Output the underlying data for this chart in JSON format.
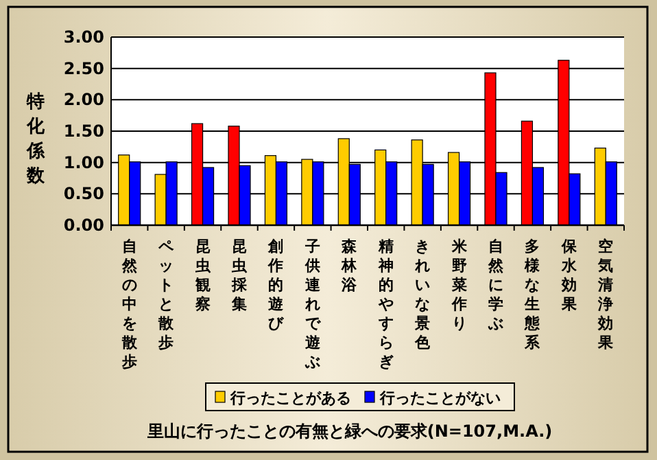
{
  "chart_data": {
    "type": "bar",
    "title": "里山に行ったことの有無と緑への要求(N=107,M.A.)",
    "ylabel": "特化係数",
    "categories": [
      "自然の中を散歩",
      "ペットと散歩",
      "昆虫観察",
      "昆虫採集",
      "創作的遊び",
      "子供連れで遊ぶ",
      "森林浴",
      "精神的やすらぎ",
      "きれいな景色",
      "米野菜作り",
      "自然に学ぶ",
      "多様な生態系",
      "保水効果",
      "空気清浄効果"
    ],
    "series": [
      {
        "name": "行ったことがある",
        "color": "#ffcc00",
        "colors": [
          "#ffcc00",
          "#ffcc00",
          "#ff0000",
          "#ff0000",
          "#ffcc00",
          "#ffcc00",
          "#ffcc00",
          "#ffcc00",
          "#ffcc00",
          "#ffcc00",
          "#ff0000",
          "#ff0000",
          "#ff0000",
          "#ffcc00"
        ],
        "values": [
          1.12,
          0.81,
          1.62,
          1.58,
          1.11,
          1.05,
          1.38,
          1.2,
          1.36,
          1.16,
          2.43,
          1.66,
          2.63,
          1.23
        ]
      },
      {
        "name": "行ったことがない",
        "color": "#0000ff",
        "values": [
          1.01,
          1.01,
          0.92,
          0.95,
          1.01,
          1.01,
          0.97,
          1.01,
          0.97,
          1.01,
          0.84,
          0.92,
          0.82,
          1.01
        ]
      }
    ],
    "ylim": [
      0,
      3
    ],
    "yticks": [
      {
        "value": 0,
        "label": "0.00"
      },
      {
        "value": 0.5,
        "label": "0.50"
      },
      {
        "value": 1,
        "label": "1.00"
      },
      {
        "value": 1.5,
        "label": "1.50"
      },
      {
        "value": 2,
        "label": "2.00"
      },
      {
        "value": 2.5,
        "label": "2.50"
      },
      {
        "value": 3,
        "label": "3.00"
      }
    ],
    "grid": "y",
    "legend": "bottom"
  }
}
